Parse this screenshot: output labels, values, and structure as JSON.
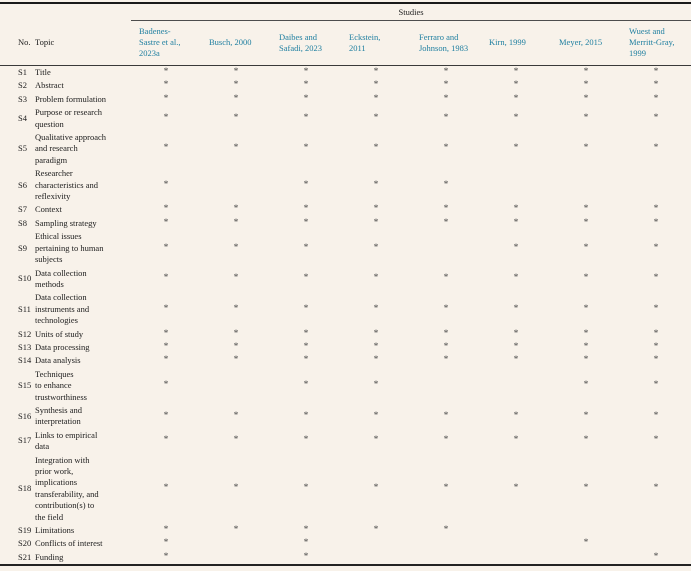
{
  "table": {
    "group_header": "Studies",
    "col_no": "No.",
    "col_topic": "Topic",
    "star_char": "*",
    "studies": [
      "Badenes-\nSastre et al.,\n2023a",
      "Busch, 2000",
      "Daibes and\nSafadi, 2023",
      "Eckstein,\n2011",
      "Ferraro and\nJohnson, 1983",
      "Kirn, 1999",
      "Meyer, 2015",
      "Wuest and\nMerritt-Gray,\n1999"
    ],
    "rows": [
      {
        "no": "S1",
        "topic": "Title",
        "marks": [
          1,
          1,
          1,
          1,
          1,
          1,
          1,
          1
        ]
      },
      {
        "no": "S2",
        "topic": "Abstract",
        "marks": [
          1,
          1,
          1,
          1,
          1,
          1,
          1,
          1
        ]
      },
      {
        "no": "S3",
        "topic": "Problem formulation",
        "marks": [
          1,
          1,
          1,
          1,
          1,
          1,
          1,
          1
        ]
      },
      {
        "no": "S4",
        "topic": "Purpose or research\nquestion",
        "marks": [
          1,
          1,
          1,
          1,
          1,
          1,
          1,
          1
        ]
      },
      {
        "no": "S5",
        "topic": "Qualitative approach\nand research\nparadigm",
        "marks": [
          1,
          1,
          1,
          1,
          1,
          1,
          1,
          1
        ]
      },
      {
        "no": "S6",
        "topic": "Researcher\ncharacteristics and\nreflexivity",
        "marks": [
          1,
          0,
          1,
          1,
          1,
          0,
          0,
          0
        ]
      },
      {
        "no": "S7",
        "topic": "Context",
        "marks": [
          1,
          1,
          1,
          1,
          1,
          1,
          1,
          1
        ]
      },
      {
        "no": "S8",
        "topic": "Sampling strategy",
        "marks": [
          1,
          1,
          1,
          1,
          1,
          1,
          1,
          1
        ]
      },
      {
        "no": "S9",
        "topic": "Ethical issues\npertaining to human\nsubjects",
        "marks": [
          1,
          1,
          1,
          1,
          0,
          1,
          1,
          1
        ]
      },
      {
        "no": "S10",
        "topic": "Data collection\nmethods",
        "marks": [
          1,
          1,
          1,
          1,
          1,
          1,
          1,
          1
        ]
      },
      {
        "no": "S11",
        "topic": "Data collection\ninstruments and\ntechnologies",
        "marks": [
          1,
          1,
          1,
          1,
          1,
          1,
          1,
          1
        ]
      },
      {
        "no": "S12",
        "topic": "Units of study",
        "marks": [
          1,
          1,
          1,
          1,
          1,
          1,
          1,
          1
        ]
      },
      {
        "no": "S13",
        "topic": "Data processing",
        "marks": [
          1,
          1,
          1,
          1,
          1,
          1,
          1,
          1
        ]
      },
      {
        "no": "S14",
        "topic": "Data analysis",
        "marks": [
          1,
          1,
          1,
          1,
          1,
          1,
          1,
          1
        ]
      },
      {
        "no": "S15",
        "topic": "Techniques\nto enhance\ntrustworthiness",
        "marks": [
          1,
          0,
          1,
          1,
          0,
          0,
          1,
          1
        ]
      },
      {
        "no": "S16",
        "topic": "Synthesis and\ninterpretation",
        "marks": [
          1,
          1,
          1,
          1,
          1,
          1,
          1,
          1
        ]
      },
      {
        "no": "S17",
        "topic": "Links to empirical\ndata",
        "marks": [
          1,
          1,
          1,
          1,
          1,
          1,
          1,
          1
        ]
      },
      {
        "no": "S18",
        "topic": "Integration with\nprior work,\nimplications\ntransferability, and\ncontribution(s) to\nthe field",
        "marks": [
          1,
          1,
          1,
          1,
          1,
          1,
          1,
          1
        ]
      },
      {
        "no": "S19",
        "topic": "Limitations",
        "marks": [
          1,
          1,
          1,
          1,
          1,
          0,
          0,
          0
        ]
      },
      {
        "no": "S20",
        "topic": "Conflicts of interest",
        "marks": [
          1,
          0,
          1,
          0,
          0,
          0,
          1,
          0
        ]
      },
      {
        "no": "S21",
        "topic": "Funding",
        "marks": [
          1,
          0,
          1,
          0,
          0,
          0,
          0,
          1
        ]
      }
    ]
  },
  "colors": {
    "background": "#f8f2ea",
    "text": "#1c1c1c",
    "citation_teal": "#1f7fa0",
    "rule_dark": "#1a1a1a",
    "star": "#454545"
  }
}
